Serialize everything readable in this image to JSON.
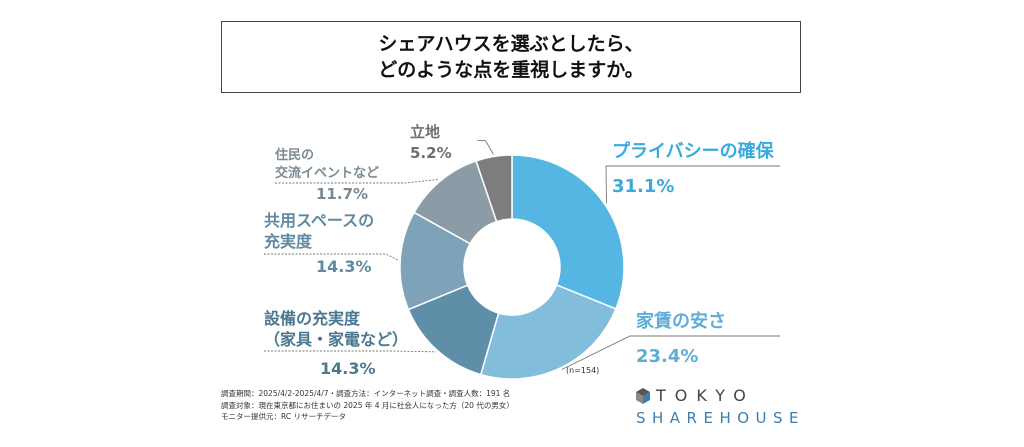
{
  "title": {
    "line1": "シェアハウスを選ぶとしたら、",
    "line2": "どのような点を重視しますか。"
  },
  "chart_data": {
    "type": "pie",
    "donut": true,
    "n_label": "(n=154)",
    "slices": [
      {
        "name_lines": [
          "プライバシーの確保"
        ],
        "value": 31.1,
        "value_label": "31.1%",
        "color": "#56b6e3",
        "label_color": "#3aa9dc"
      },
      {
        "name_lines": [
          "家賃の安さ"
        ],
        "value": 23.4,
        "value_label": "23.4%",
        "color": "#82bddb",
        "label_color": "#5daed6"
      },
      {
        "name_lines": [
          "設備の充実度",
          "（家具・家電など）"
        ],
        "value": 14.3,
        "value_label": "14.3%",
        "color": "#5f8ea8",
        "label_color": "#4b7891"
      },
      {
        "name_lines": [
          "共用スペースの",
          "充実度"
        ],
        "value": 14.3,
        "value_label": "14.3%",
        "color": "#7ea3b8",
        "label_color": "#5f8aa1"
      },
      {
        "name_lines": [
          "住民の",
          "交流イベントなど"
        ],
        "value": 11.7,
        "value_label": "11.7%",
        "color": "#8c9ca6",
        "label_color": "#7a8a93"
      },
      {
        "name_lines": [
          "立地"
        ],
        "value": 5.2,
        "value_label": "5.2%",
        "color": "#7d7d7d",
        "label_color": "#6f6f6f"
      }
    ]
  },
  "footer": {
    "line1": "調査期間：2025/4/2-2025/4/7・調査方法：インターネット調査・調査人数：191 名",
    "line2": "調査対象：現在東京都にお住まいの 2025 年 4 月に社会人になった方（20 代の男女）",
    "line3": "モニター提供元：RC リサーチデータ"
  },
  "logo": {
    "top": "TOKYO",
    "bottom": "SHAREHOUSE"
  }
}
